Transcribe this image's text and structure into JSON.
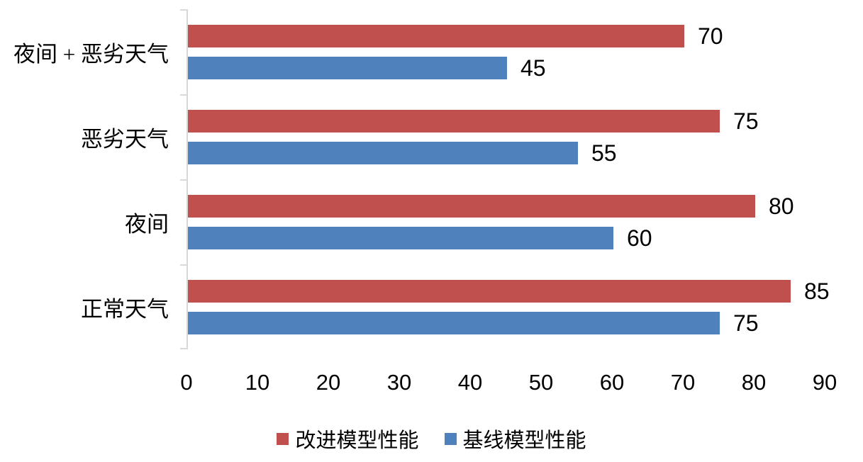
{
  "chart_data": {
    "type": "bar",
    "orientation": "horizontal",
    "categories": [
      "夜间 + 恶劣天气",
      "恶劣天气",
      "夜间",
      "正常天气"
    ],
    "categories_order": "top-to-bottom",
    "series": [
      {
        "name": "改进模型性能",
        "color": "#C0504D",
        "values": [
          70,
          75,
          80,
          85
        ]
      },
      {
        "name": "基线模型性能",
        "color": "#4F81BD",
        "values": [
          45,
          55,
          60,
          75
        ]
      }
    ],
    "xlim": [
      0,
      90
    ],
    "x_ticks": [
      "0",
      "10",
      "20",
      "30",
      "40",
      "50",
      "60",
      "70",
      "80",
      "90"
    ],
    "data_labels": true,
    "grid": false,
    "legend_position": "bottom-center",
    "axis_color": "#D9D9D9",
    "text_color": "#000000",
    "background_color": "#FFFFFF"
  }
}
